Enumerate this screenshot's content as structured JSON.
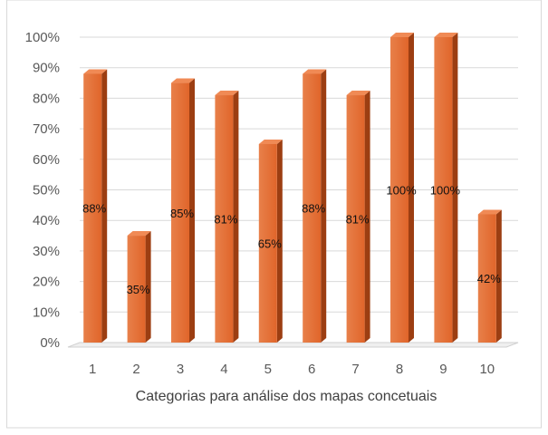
{
  "chart_data": {
    "type": "bar",
    "title": "",
    "xlabel": "Categorias para análise dos mapas concetuais",
    "ylabel": "",
    "categories": [
      "1",
      "2",
      "3",
      "4",
      "5",
      "6",
      "7",
      "8",
      "9",
      "10"
    ],
    "series": [
      {
        "values": [
          88,
          35,
          85,
          81,
          65,
          88,
          81,
          100,
          100,
          42
        ]
      }
    ],
    "data_labels": [
      "88%",
      "35%",
      "85%",
      "81%",
      "65%",
      "88%",
      "81%",
      "100%",
      "100%",
      "42%"
    ],
    "y_ticks": [
      "0%",
      "10%",
      "20%",
      "30%",
      "40%",
      "50%",
      "60%",
      "70%",
      "80%",
      "90%",
      "100%"
    ],
    "ylim": [
      0,
      100
    ],
    "grid": true,
    "legend": "none",
    "style": "3d-column",
    "colors": {
      "bar_front": "#e0652a",
      "bar_front_light": "#e8804a",
      "bar_side": "#9c3e12",
      "bar_top": "#f08a55",
      "grid": "#d9d9d9",
      "floor": "#d0d0d0",
      "frame_border": "#d9d9d9"
    }
  }
}
